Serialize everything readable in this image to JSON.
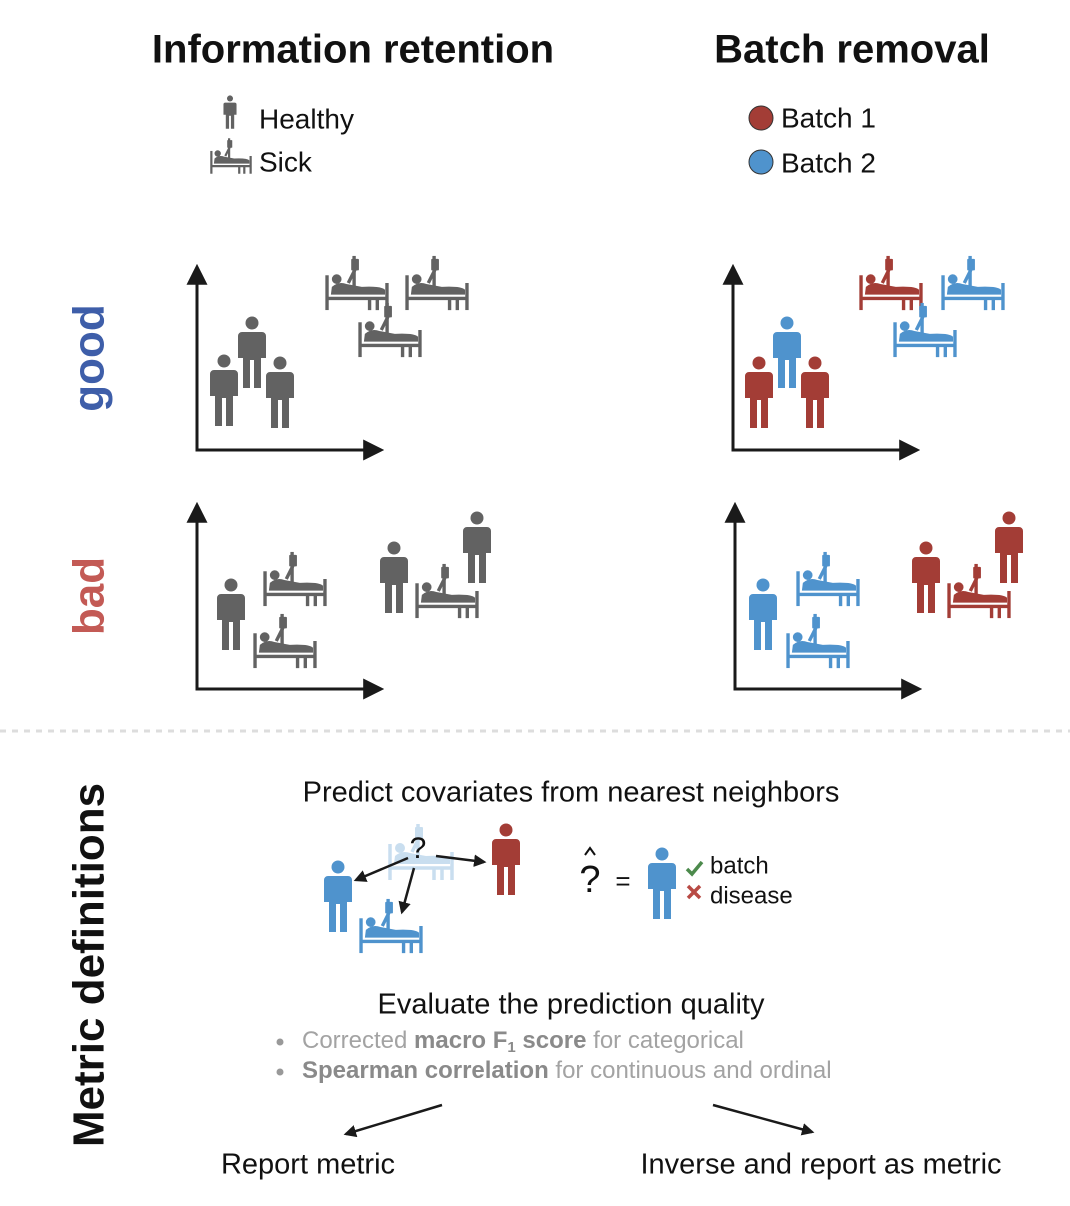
{
  "header": {
    "left_title": "Information retention",
    "right_title": "Batch removal"
  },
  "legends": {
    "condition": [
      {
        "label": "Healthy"
      },
      {
        "label": "Sick"
      }
    ],
    "batch": [
      {
        "label": "Batch 1",
        "color": "#a33d36"
      },
      {
        "label": "Batch 2",
        "color": "#4f93cd"
      }
    ]
  },
  "rows": [
    {
      "label": "good",
      "color": "#3e5ea9"
    },
    {
      "label": "bad",
      "color": "#c35a55"
    }
  ],
  "metric_section": {
    "label": "Metric definitions",
    "predict_title": "Predict covariates from nearest neighbors",
    "query_mark": "?",
    "prediction_symbol": "?",
    "equals": "=",
    "outcomes": [
      {
        "label": "batch"
      },
      {
        "label": "disease"
      }
    ],
    "evaluate_title": "Evaluate the prediction quality",
    "bullets": [
      [
        {
          "text": "Corrected ",
          "bold": false
        },
        {
          "text": "macro F",
          "bold": true
        },
        {
          "text": "1",
          "bold": true,
          "subscript": true
        },
        {
          "text": " score",
          "bold": true
        },
        {
          "text": " for categorical",
          "bold": false
        }
      ],
      [
        {
          "text": "Spearman correlation",
          "bold": true
        },
        {
          "text": " for continuous and ordinal",
          "bold": false
        }
      ]
    ],
    "report_left": "Report metric",
    "report_right": "Inverse and report as metric"
  }
}
